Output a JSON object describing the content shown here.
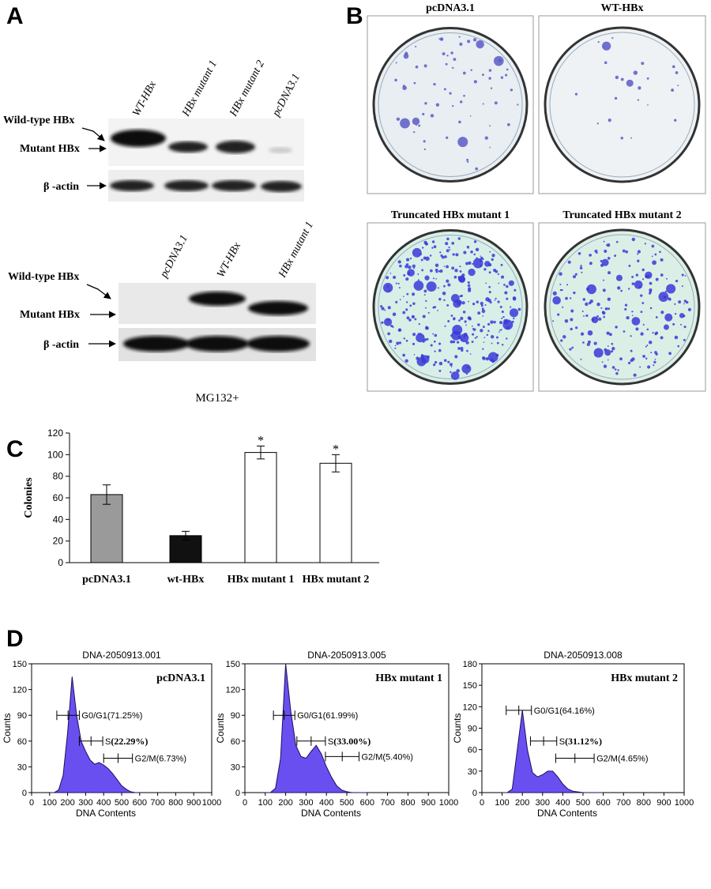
{
  "panels": {
    "a": {
      "letter": "A",
      "blot1": {
        "lanes": [
          "WT-HBx",
          "HBx mutant 1",
          "HBx mutant 2",
          "pcDNA3.1"
        ],
        "labels": [
          "Wild-type HBx",
          "Mutant HBx",
          "β -actin"
        ]
      },
      "blot2": {
        "lanes": [
          "pcDNA3.1",
          "WT-HBx",
          "HBx mutant 1"
        ],
        "labels": [
          "Wild-type HBx",
          "Mutant HBx",
          "β -actin"
        ]
      },
      "treatment": "MG132+"
    },
    "b": {
      "letter": "B",
      "dishes": [
        "pcDNA3.1",
        "WT-HBx",
        "Truncated HBx mutant 1",
        "Truncated HBx mutant 2"
      ]
    },
    "c": {
      "letter": "C"
    },
    "d": {
      "letter": "D"
    }
  },
  "chart_data": [
    {
      "type": "bar",
      "ylabel": "Colonies",
      "categories": [
        "pcDNA3.1",
        "wt-HBx",
        "HBx mutant 1",
        "HBx mutant 2"
      ],
      "values": [
        63,
        25,
        102,
        92
      ],
      "errors": [
        9,
        4,
        6,
        8
      ],
      "colors": [
        "#9a9a9a",
        "#111111",
        "#ffffff",
        "#ffffff"
      ],
      "annotations": [
        null,
        null,
        "*",
        "*"
      ],
      "ylim": [
        0,
        120
      ],
      "yticks": [
        0,
        20,
        40,
        60,
        80,
        100,
        120
      ]
    },
    {
      "type": "area",
      "title": "DNA-2050913.001",
      "label": "pcDNA3.1",
      "xlabel": "DNA Contents",
      "ylabel": "Counts",
      "color": "#6a4ff0",
      "x": [
        100,
        125,
        150,
        175,
        200,
        225,
        250,
        275,
        300,
        325,
        350,
        375,
        400,
        425,
        450,
        475,
        500,
        525,
        550,
        575,
        600
      ],
      "values": [
        0,
        0,
        3,
        20,
        70,
        135,
        90,
        60,
        48,
        38,
        33,
        35,
        32,
        28,
        22,
        15,
        8,
        4,
        1,
        0,
        0
      ],
      "xlim": [
        0,
        1000
      ],
      "xticks": [
        0,
        100,
        200,
        300,
        400,
        500,
        600,
        700,
        800,
        900,
        1000
      ],
      "ylim": [
        0,
        150
      ],
      "yticks": [
        0,
        30,
        60,
        90,
        120,
        150
      ],
      "gates": [
        {
          "name": "G0/G1",
          "percent": "(71.25%)",
          "x": [
            140,
            265
          ],
          "y": 90,
          "bold": false
        },
        {
          "name": "S",
          "percent": "(22.29%)",
          "x": [
            265,
            395
          ],
          "y": 60,
          "bold": true
        },
        {
          "name": "G2/M",
          "percent": "(6.73%)",
          "x": [
            400,
            560
          ],
          "y": 40,
          "bold": false
        }
      ]
    },
    {
      "type": "area",
      "title": "DNA-2050913.005",
      "label": "HBx mutant 1",
      "xlabel": "DNA Contents",
      "ylabel": "Counts",
      "color": "#6a4ff0",
      "x": [
        100,
        125,
        150,
        175,
        200,
        225,
        250,
        275,
        300,
        325,
        350,
        375,
        400,
        425,
        450,
        475,
        500,
        525,
        550,
        575,
        600
      ],
      "values": [
        0,
        0,
        5,
        40,
        150,
        95,
        55,
        42,
        40,
        48,
        55,
        45,
        30,
        18,
        8,
        3,
        1,
        0,
        0,
        0,
        0
      ],
      "xlim": [
        0,
        1000
      ],
      "xticks": [
        0,
        100,
        200,
        300,
        400,
        500,
        600,
        700,
        800,
        900,
        1000
      ],
      "ylim": [
        0,
        150
      ],
      "yticks": [
        0,
        30,
        60,
        90,
        120,
        150
      ],
      "gates": [
        {
          "name": "G0/G1",
          "percent": "(61.99%)",
          "x": [
            140,
            245
          ],
          "y": 90,
          "bold": false
        },
        {
          "name": "S",
          "percent": "(33.00%)",
          "x": [
            255,
            395
          ],
          "y": 60,
          "bold": true
        },
        {
          "name": "G2/M",
          "percent": "(5.40%)",
          "x": [
            395,
            560
          ],
          "y": 42,
          "bold": false
        }
      ]
    },
    {
      "type": "area",
      "title": "DNA-2050913.008",
      "label": "HBx mutant 2",
      "xlabel": "DNA Contents",
      "ylabel": "Counts",
      "color": "#6a4ff0",
      "x": [
        100,
        125,
        150,
        175,
        200,
        225,
        250,
        275,
        300,
        325,
        350,
        375,
        400,
        425,
        450,
        475,
        500,
        525,
        550,
        575,
        600
      ],
      "values": [
        0,
        0,
        5,
        60,
        115,
        60,
        28,
        22,
        25,
        30,
        30,
        22,
        12,
        5,
        2,
        1,
        0,
        0,
        0,
        0,
        0
      ],
      "xlim": [
        0,
        1000
      ],
      "xticks": [
        0,
        100,
        200,
        300,
        400,
        500,
        600,
        700,
        800,
        900,
        1000
      ],
      "ylim": [
        0,
        180
      ],
      "yticks": [
        0,
        30,
        60,
        90,
        120,
        150,
        180
      ],
      "gates": [
        {
          "name": "G0/G1",
          "percent": "(64.16%)",
          "x": [
            120,
            245
          ],
          "y": 115,
          "bold": false
        },
        {
          "name": "S",
          "percent": "(31.12%)",
          "x": [
            240,
            370
          ],
          "y": 72,
          "bold": true
        },
        {
          "name": "G2/M",
          "percent": "(4.65%)",
          "x": [
            365,
            555
          ],
          "y": 48,
          "bold": false
        }
      ]
    }
  ]
}
